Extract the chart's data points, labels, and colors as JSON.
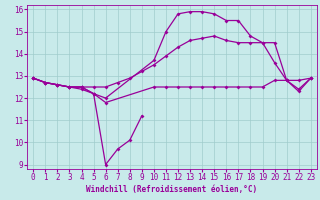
{
  "xlabel": "Windchill (Refroidissement éolien,°C)",
  "background_color": "#c8eaea",
  "grid_color": "#a0cccc",
  "line_color": "#990099",
  "xlim": [
    -0.5,
    23.5
  ],
  "ylim": [
    8.8,
    16.2
  ],
  "xticks": [
    0,
    1,
    2,
    3,
    4,
    5,
    6,
    7,
    8,
    9,
    10,
    11,
    12,
    13,
    14,
    15,
    16,
    17,
    18,
    19,
    20,
    21,
    22,
    23
  ],
  "yticks": [
    9,
    10,
    11,
    12,
    13,
    14,
    15,
    16
  ],
  "curve1_x": [
    0,
    1,
    2,
    3,
    4,
    5,
    6,
    10,
    11,
    12,
    13,
    14,
    15,
    16,
    17,
    18,
    19,
    20,
    21,
    22,
    23
  ],
  "curve1_y": [
    12.9,
    12.7,
    12.6,
    12.5,
    12.5,
    12.2,
    11.8,
    12.5,
    12.5,
    12.5,
    12.5,
    12.5,
    12.5,
    12.5,
    12.5,
    12.5,
    12.5,
    12.8,
    12.8,
    12.4,
    12.9
  ],
  "curve2_x": [
    0,
    1,
    2,
    3,
    4,
    5,
    6,
    7,
    8,
    9
  ],
  "curve2_y": [
    12.9,
    12.7,
    12.6,
    12.5,
    12.5,
    12.2,
    9.0,
    9.7,
    10.1,
    11.2
  ],
  "curve3_x": [
    0,
    1,
    2,
    3,
    4,
    5,
    6,
    7,
    8,
    9,
    10,
    11,
    12,
    13,
    14,
    15,
    16,
    17,
    18,
    19,
    20,
    21,
    22,
    23
  ],
  "curve3_y": [
    12.9,
    12.7,
    12.6,
    12.5,
    12.5,
    12.5,
    12.5,
    12.7,
    12.9,
    13.2,
    13.5,
    13.9,
    14.3,
    14.6,
    14.7,
    14.8,
    14.6,
    14.5,
    14.5,
    14.5,
    14.5,
    12.8,
    12.8,
    12.9
  ],
  "curve4_x": [
    0,
    1,
    2,
    3,
    4,
    5,
    6,
    10,
    11,
    12,
    13,
    14,
    15,
    16,
    17,
    18,
    19,
    20,
    21,
    22,
    23
  ],
  "curve4_y": [
    12.9,
    12.7,
    12.6,
    12.5,
    12.4,
    12.2,
    12.0,
    13.7,
    15.0,
    15.8,
    15.9,
    15.9,
    15.8,
    15.5,
    15.5,
    14.8,
    14.5,
    13.6,
    12.8,
    12.3,
    12.9
  ]
}
